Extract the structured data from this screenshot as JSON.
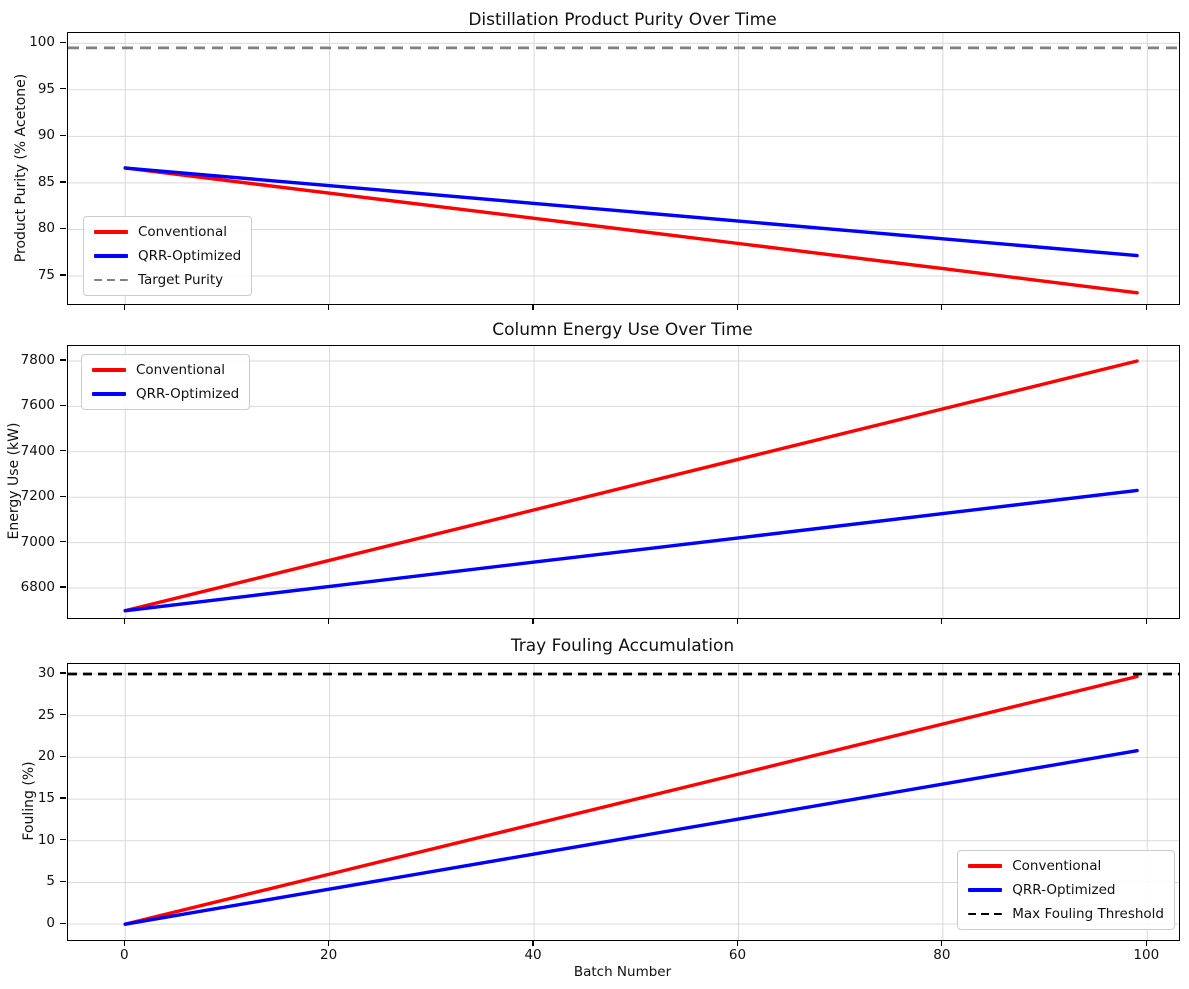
{
  "figure": {
    "background": "#ffffff",
    "grid_color": "#d9d9d9"
  },
  "chart_data": [
    {
      "type": "line",
      "title": "Distillation Product Purity Over Time",
      "ylabel": "Product Purity (% Acetone)",
      "xlim": [
        -5.6,
        103.1
      ],
      "ylim": [
        72.0,
        101.1
      ],
      "xticks": [
        0,
        20,
        40,
        60,
        80,
        100
      ],
      "yticks": [
        75,
        80,
        85,
        90,
        95,
        100
      ],
      "grid": true,
      "show_xtick_labels": false,
      "legend_loc": "lower-left",
      "x": [
        0,
        20,
        40,
        60,
        80,
        99
      ],
      "series": [
        {
          "name": "Conventional",
          "color": "#ff0000",
          "style": "solid",
          "values": [
            86.6,
            83.9,
            81.2,
            78.5,
            75.8,
            73.2
          ]
        },
        {
          "name": "QRR-Optimized",
          "color": "#0000ff",
          "style": "solid",
          "values": [
            86.6,
            84.7,
            82.8,
            80.9,
            79.0,
            77.2
          ]
        },
        {
          "name": "Target Purity",
          "color": "#808080",
          "style": "dashed",
          "hline": 99.5
        }
      ]
    },
    {
      "type": "line",
      "title": "Column Energy Use Over Time",
      "ylabel": "Energy Use (kW)",
      "xlim": [
        -5.6,
        103.1
      ],
      "ylim": [
        6668,
        7866
      ],
      "xticks": [
        0,
        20,
        40,
        60,
        80,
        100
      ],
      "yticks": [
        6800,
        7000,
        7200,
        7400,
        7600,
        7800
      ],
      "grid": true,
      "show_xtick_labels": false,
      "legend_loc": "upper-left",
      "x": [
        0,
        20,
        40,
        60,
        80,
        99
      ],
      "series": [
        {
          "name": "Conventional",
          "color": "#ff0000",
          "style": "solid",
          "values": [
            6700,
            6922,
            7144,
            7367,
            7589,
            7800
          ]
        },
        {
          "name": "QRR-Optimized",
          "color": "#0000ff",
          "style": "solid",
          "values": [
            6700,
            6807,
            6914,
            7021,
            7128,
            7230
          ]
        }
      ]
    },
    {
      "type": "line",
      "title": "Tray Fouling Accumulation",
      "ylabel": "Fouling (%)",
      "xlabel": "Batch Number",
      "xlim": [
        -5.6,
        103.1
      ],
      "ylim": [
        -1.9,
        31.2
      ],
      "xticks": [
        0,
        20,
        40,
        60,
        80,
        100
      ],
      "yticks": [
        0,
        5,
        10,
        15,
        20,
        25,
        30
      ],
      "grid": true,
      "show_xtick_labels": true,
      "legend_loc": "lower-right",
      "x": [
        0,
        20,
        40,
        60,
        80,
        99
      ],
      "series": [
        {
          "name": "Conventional",
          "color": "#ff0000",
          "style": "solid",
          "values": [
            0,
            6.0,
            12.0,
            18.0,
            24.0,
            29.7
          ]
        },
        {
          "name": "QRR-Optimized",
          "color": "#0000ff",
          "style": "solid",
          "values": [
            0,
            4.2,
            8.4,
            12.6,
            16.8,
            20.8
          ]
        },
        {
          "name": "Max Fouling Threshold",
          "color": "#000000",
          "style": "dashed",
          "hline": 30
        }
      ]
    }
  ]
}
